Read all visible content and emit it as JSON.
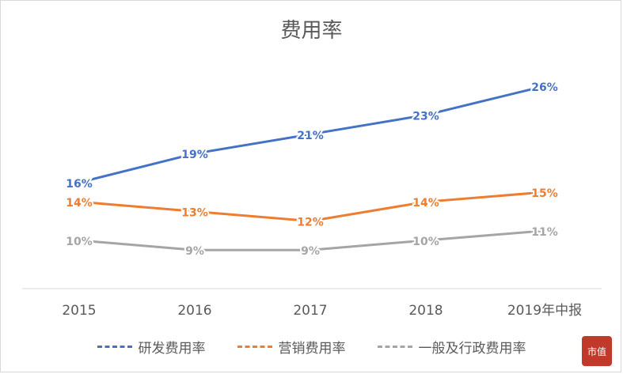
{
  "chart_data": {
    "type": "line",
    "title": "费用率",
    "categories": [
      "2015",
      "2016",
      "2017",
      "2018",
      "2019年中报"
    ],
    "series": [
      {
        "name": "研发费用率",
        "color": "#4472c4",
        "values": [
          16,
          19,
          21,
          23,
          26
        ],
        "labels": [
          "16%",
          "19%",
          "21%",
          "23%",
          "26%"
        ]
      },
      {
        "name": "营销费用率",
        "color": "#ed7d31",
        "values": [
          14,
          13,
          12,
          14,
          15
        ],
        "labels": [
          "14%",
          "13%",
          "12%",
          "14%",
          "15%"
        ]
      },
      {
        "name": "一般及行政费用率",
        "color": "#a5a5a5",
        "values": [
          10,
          9,
          9,
          10,
          11
        ],
        "labels": [
          "10%",
          "9%",
          "9%",
          "10%",
          "11%"
        ]
      }
    ],
    "ylim": [
      5,
      30
    ],
    "grid": false,
    "legend": "bottom"
  },
  "watermark_text": "市值"
}
